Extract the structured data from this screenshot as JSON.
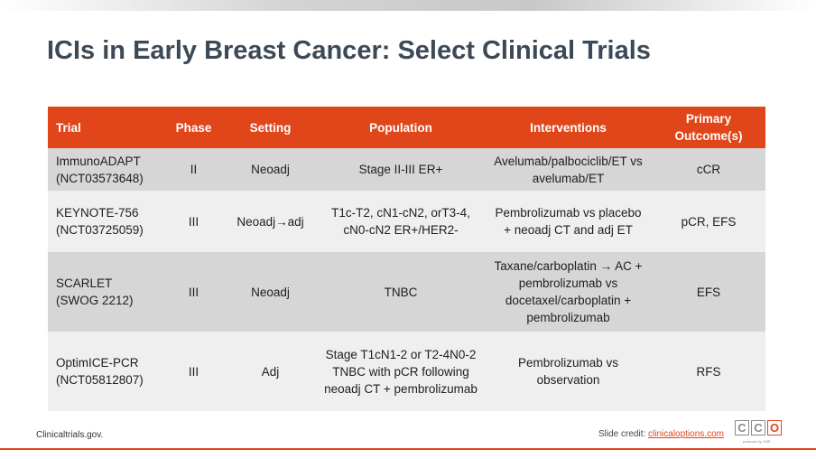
{
  "slide": {
    "title": "ICIs in Early Breast Cancer: Select Clinical Trials"
  },
  "table": {
    "headers": [
      "Trial",
      "Phase",
      "Setting",
      "Population",
      "Interventions",
      "Primary Outcome(s)"
    ],
    "rows": [
      {
        "trial_name": "ImmunoADAPT",
        "trial_id": "(NCT03573648)",
        "phase": "II",
        "setting": "Neoadj",
        "population": "Stage II-III ER+",
        "interventions": "Avelumab/palbociclib/ET vs avelumab/ET",
        "outcome": "cCR"
      },
      {
        "trial_name": "KEYNOTE-756",
        "trial_id": "(NCT03725059)",
        "phase": "III",
        "setting": "Neoadj→adj",
        "population": "T1c-T2, cN1-cN2, orT3-4, cN0-cN2 ER+/HER2-",
        "interventions": "Pembrolizumab vs placebo + neoadj CT and adj ET",
        "outcome": "pCR, EFS"
      },
      {
        "trial_name": "SCARLET",
        "trial_id": "(SWOG 2212)",
        "phase": "III",
        "setting": "Neoadj",
        "population": "TNBC",
        "interventions": "Taxane/carboplatin → AC + pembrolizumab vs docetaxel/carboplatin + pembrolizumab",
        "outcome": "EFS"
      },
      {
        "trial_name": "OptimICE-PCR",
        "trial_id": "(NCT05812807)",
        "phase": "III",
        "setting": "Adj",
        "population": "Stage T1cN1-2 or T2-4N0-2 TNBC with pCR following neoadj CT + pembrolizumab",
        "interventions": "Pembrolizumab vs observation",
        "outcome": "RFS"
      }
    ]
  },
  "footer": {
    "source": "Clinicaltrials.gov.",
    "credit_label": "Slide credit:",
    "credit_link": "clinicaloptions.com",
    "logo_letters": [
      "C",
      "C",
      "O"
    ],
    "logo_tagline": "powered by CME"
  },
  "colors": {
    "header_bg": "#e0461a",
    "row_gray": "#d6d6d6",
    "row_light": "#efefef",
    "title": "#3c4a57"
  }
}
